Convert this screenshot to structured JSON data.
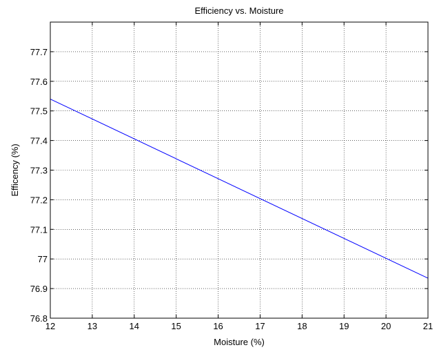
{
  "chart_data": {
    "type": "line",
    "title": "Efficiency vs. Moisture",
    "xlabel": "Moisture (%)",
    "ylabel": "Efficency (%)",
    "xlim": [
      12,
      21
    ],
    "ylim": [
      76.8,
      77.8
    ],
    "xticks": [
      12,
      13,
      14,
      15,
      16,
      17,
      18,
      19,
      20,
      21
    ],
    "xtick_labels": [
      "12",
      "13",
      "14",
      "15",
      "16",
      "17",
      "18",
      "19",
      "20",
      "21"
    ],
    "yticks": [
      76.8,
      76.9,
      77,
      77.1,
      77.2,
      77.3,
      77.4,
      77.5,
      77.6,
      77.7
    ],
    "ytick_labels": [
      "76.8",
      "76.9",
      "77",
      "77.1",
      "77.2",
      "77.3",
      "77.4",
      "77.5",
      "77.6",
      "77.7"
    ],
    "grid": true,
    "series": [
      {
        "color": "#0000ff",
        "x": [
          12,
          21
        ],
        "y": [
          77.54,
          76.935
        ]
      }
    ]
  }
}
